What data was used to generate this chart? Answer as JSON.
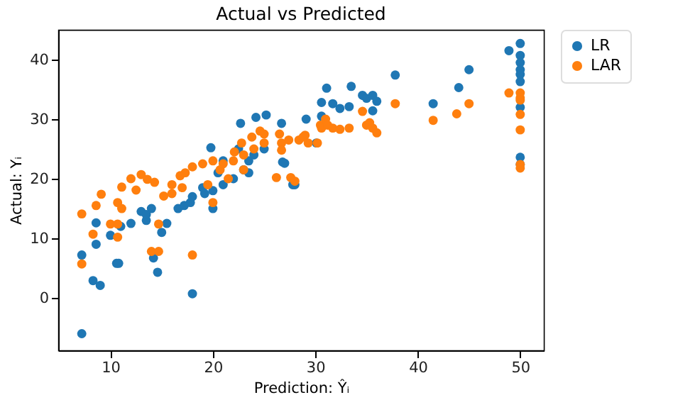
{
  "chart_data": {
    "type": "scatter",
    "title": "Actual vs Predicted",
    "xlabel": "Prediction: Ŷᵢ",
    "ylabel": "Actual: Yᵢ",
    "xlim": [
      4.9,
      52.3
    ],
    "ylim": [
      -8.8,
      45
    ],
    "xticks": [
      10,
      20,
      30,
      40,
      50
    ],
    "yticks": [
      0,
      10,
      20,
      30,
      40
    ],
    "grid": false,
    "legend": "top right",
    "marker": "circle",
    "series": [
      {
        "name": "LR",
        "color": "#1f77b4",
        "x": [
          7.2,
          7.2,
          8.3,
          9.0,
          8.6,
          8.6,
          10,
          10.6,
          10.8,
          14.2,
          14.6,
          18,
          11,
          12,
          13.5,
          13,
          14,
          13.5,
          15,
          15.5,
          16.6,
          17.2,
          17.8,
          19.2,
          20,
          20,
          19.8,
          22.7,
          24.2,
          25.2,
          23.5,
          23.5,
          18,
          19,
          21,
          22,
          23,
          24,
          25,
          21,
          22.5,
          20.5,
          26.7,
          26.8,
          27,
          27.8,
          28,
          29.1,
          30.6,
          30.6,
          31.1,
          31.7,
          32.4,
          33.3,
          33.5,
          34.6,
          35,
          35.6,
          36,
          35.6,
          37.8,
          41.5,
          44,
          45,
          48.9,
          30.1,
          50,
          50,
          50,
          50,
          50,
          50,
          50,
          50,
          50
        ],
        "values": [
          -6,
          7.2,
          2.9,
          2.1,
          9,
          12.6,
          10.5,
          5.8,
          5.8,
          6.7,
          4.3,
          0.7,
          12,
          12.5,
          13,
          14.5,
          15,
          14,
          11,
          12.5,
          15,
          15.5,
          16,
          17.5,
          18,
          15,
          25.2,
          29.3,
          30.3,
          30.7,
          23,
          21,
          17,
          18.5,
          19,
          20,
          21.5,
          24,
          25,
          23,
          25,
          21,
          29.3,
          22.8,
          22.6,
          19,
          19,
          30,
          32.8,
          30.5,
          35.2,
          32.6,
          31.8,
          32.1,
          35.5,
          34,
          33.5,
          34,
          33,
          31.4,
          37.4,
          32.6,
          35.3,
          38.3,
          41.5,
          26,
          42.7,
          40.7,
          39.5,
          38.3,
          37.5,
          36.3,
          32,
          23.6,
          22.4
        ]
      },
      {
        "name": "LAR",
        "color": "#ff7f0e",
        "x": [
          7.2,
          7.2,
          8.3,
          8.6,
          9.1,
          10,
          10.7,
          10.7,
          10.7,
          11.1,
          11.1,
          12,
          12.5,
          13,
          13.6,
          14.3,
          14,
          14.7,
          14.7,
          15.2,
          16,
          16.8,
          18,
          17.3,
          18,
          19,
          20,
          20.7,
          20,
          22.1,
          22.8,
          23.8,
          24.6,
          25,
          26.2,
          27.6,
          28,
          26.5,
          29,
          21,
          22,
          23,
          24,
          25,
          19.5,
          21.5,
          23,
          17,
          16,
          30.5,
          31,
          26.7,
          26.7,
          27.4,
          28.4,
          28.8,
          29.3,
          30.2,
          30.6,
          31.2,
          31.7,
          32.4,
          33.3,
          34.6,
          35,
          35.3,
          35.6,
          36,
          37.8,
          41.5,
          43.8,
          45,
          48.9,
          50,
          50,
          50,
          50,
          50,
          50,
          50
        ],
        "values": [
          14.1,
          5.7,
          10.7,
          15.5,
          17.4,
          12.4,
          12.4,
          10.2,
          16,
          18.6,
          15,
          20,
          18.1,
          20.7,
          19.9,
          19.4,
          7.8,
          7.8,
          12.4,
          17.1,
          19,
          20.5,
          7.2,
          21,
          22,
          22.5,
          23,
          21.5,
          16,
          24.5,
          26,
          27,
          28,
          27.5,
          20.2,
          20.2,
          19.6,
          27.5,
          27.3,
          22.5,
          23,
          24,
          25,
          26,
          19,
          20,
          21.5,
          18.5,
          17.5,
          29,
          30,
          26,
          24.8,
          26.5,
          26.5,
          27,
          26,
          26,
          28.5,
          29,
          28.5,
          28.3,
          28.5,
          31.3,
          29,
          29.4,
          28.5,
          27.7,
          32.6,
          29.8,
          30.9,
          32.6,
          34.4,
          34.4,
          33.6,
          33.2,
          30.8,
          28.2,
          22.4,
          21.8
        ]
      }
    ]
  }
}
